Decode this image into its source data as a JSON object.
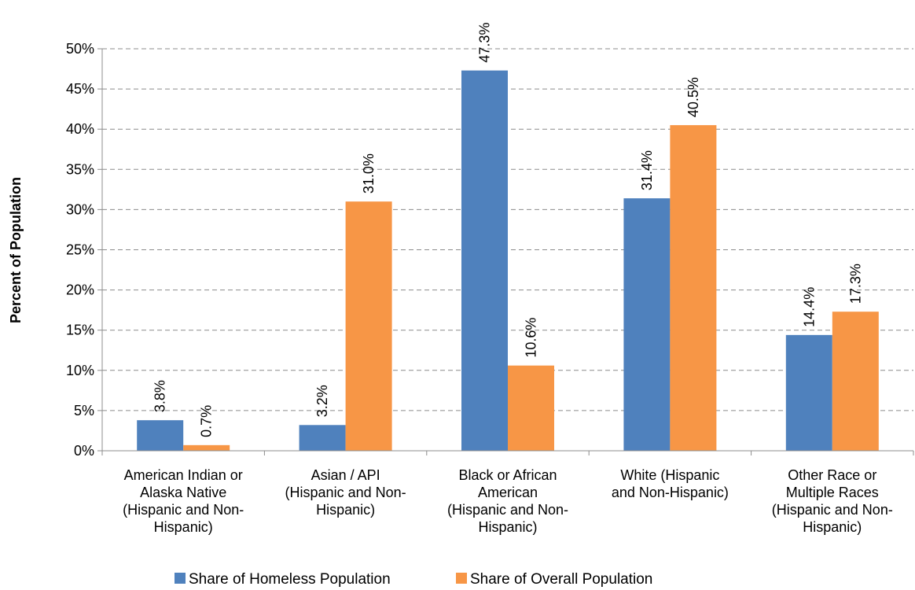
{
  "chart_data": {
    "type": "bar",
    "title": "",
    "xlabel": "",
    "ylabel": "Percent of Population",
    "ylim": [
      0,
      50
    ],
    "y_ticks": [
      0,
      5,
      10,
      15,
      20,
      25,
      30,
      35,
      40,
      45,
      50
    ],
    "y_tick_labels": [
      "0%",
      "5%",
      "10%",
      "15%",
      "20%",
      "25%",
      "30%",
      "35%",
      "40%",
      "45%",
      "50%"
    ],
    "categories": [
      [
        "American Indian or",
        "Alaska Native",
        "(Hispanic and Non-",
        "Hispanic)"
      ],
      [
        "Asian / API",
        "(Hispanic and Non-",
        "Hispanic)"
      ],
      [
        "Black or African",
        "American",
        "(Hispanic and Non-",
        "Hispanic)"
      ],
      [
        "White (Hispanic",
        "and Non-Hispanic)"
      ],
      [
        "Other Race or",
        "Multiple Races",
        "(Hispanic and Non-",
        "Hispanic)"
      ]
    ],
    "series": [
      {
        "name": "Share of Homeless Population",
        "color": "#4F81BD",
        "values": [
          3.8,
          3.2,
          47.3,
          31.4,
          14.4
        ],
        "labels": [
          "3.8%",
          "3.2%",
          "47.3%",
          "31.4%",
          "14.4%"
        ]
      },
      {
        "name": "Share of Overall Population",
        "color": "#F79646",
        "values": [
          0.7,
          31.0,
          10.6,
          40.5,
          17.3
        ],
        "labels": [
          "0.7%",
          "31.0%",
          "10.6%",
          "40.5%",
          "17.3%"
        ]
      }
    ],
    "grid": true,
    "gridline_style": "dashed",
    "legend_position": "bottom"
  }
}
